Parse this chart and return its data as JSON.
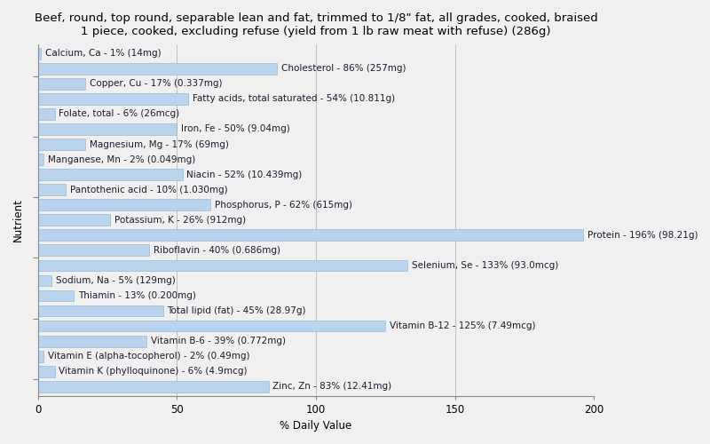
{
  "title": "Beef, round, top round, separable lean and fat, trimmed to 1/8\" fat, all grades, cooked, braised\n1 piece, cooked, excluding refuse (yield from 1 lb raw meat with refuse) (286g)",
  "xlabel": "% Daily Value",
  "ylabel": "Nutrient",
  "nutrients": [
    "Calcium, Ca - 1% (14mg)",
    "Cholesterol - 86% (257mg)",
    "Copper, Cu - 17% (0.337mg)",
    "Fatty acids, total saturated - 54% (10.811g)",
    "Folate, total - 6% (26mcg)",
    "Iron, Fe - 50% (9.04mg)",
    "Magnesium, Mg - 17% (69mg)",
    "Manganese, Mn - 2% (0.049mg)",
    "Niacin - 52% (10.439mg)",
    "Pantothenic acid - 10% (1.030mg)",
    "Phosphorus, P - 62% (615mg)",
    "Potassium, K - 26% (912mg)",
    "Protein - 196% (98.21g)",
    "Riboflavin - 40% (0.686mg)",
    "Selenium, Se - 133% (93.0mcg)",
    "Sodium, Na - 5% (129mg)",
    "Thiamin - 13% (0.200mg)",
    "Total lipid (fat) - 45% (28.97g)",
    "Vitamin B-12 - 125% (7.49mcg)",
    "Vitamin B-6 - 39% (0.772mg)",
    "Vitamin E (alpha-tocopherol) - 2% (0.49mg)",
    "Vitamin K (phylloquinone) - 6% (4.9mcg)",
    "Zinc, Zn - 83% (12.41mg)"
  ],
  "values": [
    1,
    86,
    17,
    54,
    6,
    50,
    17,
    2,
    52,
    10,
    62,
    26,
    196,
    40,
    133,
    5,
    13,
    45,
    125,
    39,
    2,
    6,
    83
  ],
  "bar_color": "#bad4ee",
  "bar_edge_color": "#8ab0d0",
  "background_color": "#f0f0f0",
  "plot_background_color": "#f0f0f0",
  "xlim": [
    0,
    200
  ],
  "xticks": [
    0,
    50,
    100,
    150,
    200
  ],
  "title_fontsize": 9.5,
  "label_fontsize": 7.5,
  "tick_fontsize": 8.5,
  "ylabel_fontsize": 8.5,
  "bar_height": 0.75,
  "ytick_positions": [
    1.5,
    5.5,
    9.5,
    13.5,
    17.5,
    21.5
  ]
}
